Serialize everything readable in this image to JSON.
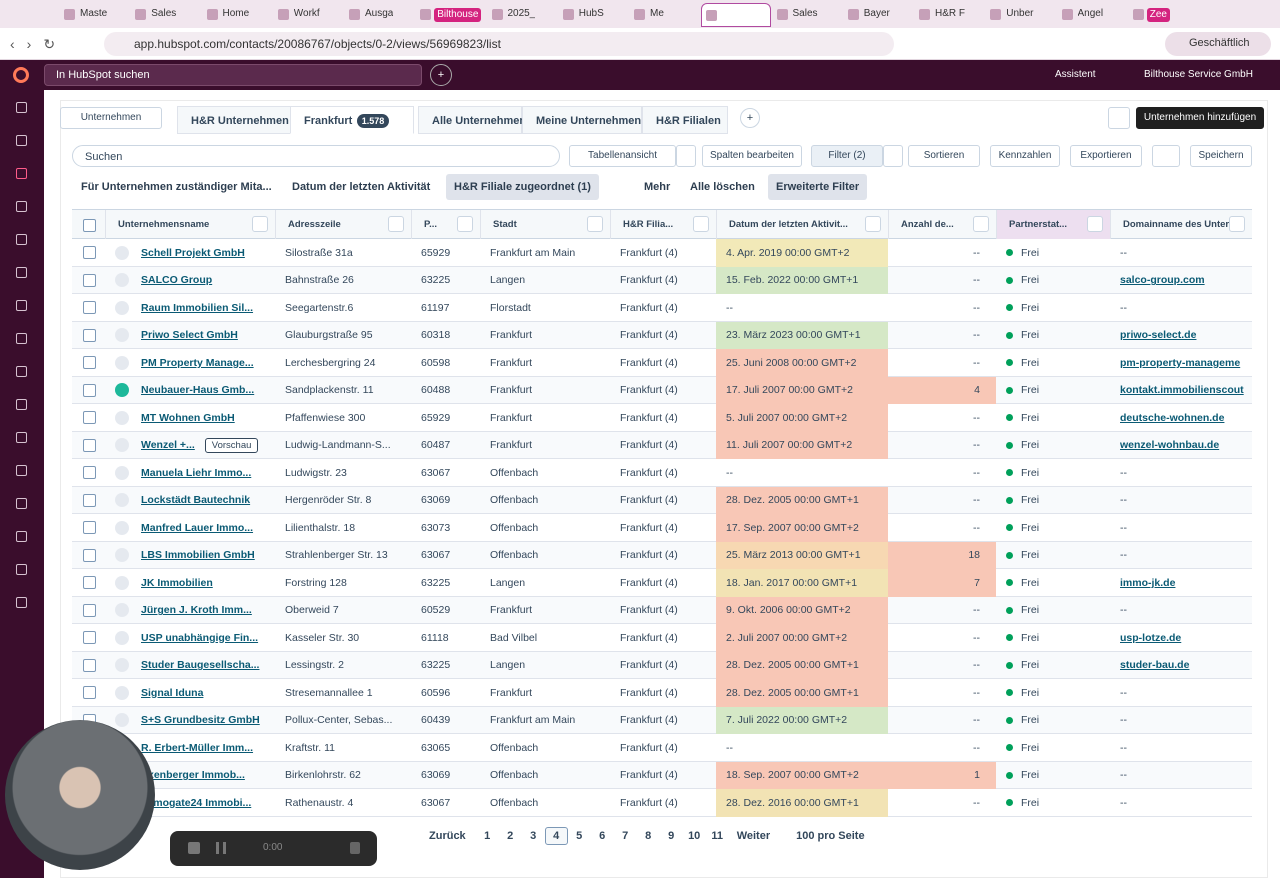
{
  "browser": {
    "tabs": [
      {
        "label": "Maste"
      },
      {
        "label": "Sales"
      },
      {
        "label": "Home"
      },
      {
        "label": "Workf"
      },
      {
        "label": "Ausga"
      },
      {
        "label": "Bilthouse",
        "pill": true
      },
      {
        "label": "2025_"
      },
      {
        "label": "HubS"
      },
      {
        "label": "Me"
      },
      {
        "label": "",
        "active": true
      },
      {
        "label": "Sales"
      },
      {
        "label": "Bayer"
      },
      {
        "label": "H&R F"
      },
      {
        "label": "Unber"
      },
      {
        "label": "Angel"
      },
      {
        "label": "Zee",
        "pill": true
      }
    ],
    "url": "app.hubspot.com/contacts/20086767/objects/0-2/views/56969823/list",
    "profile": "Geschäftlich"
  },
  "topbar": {
    "search": "In HubSpot suchen",
    "assistant": "Assistent",
    "account": "Bilthouse Service GmbH"
  },
  "views": {
    "object": "Unternehmen",
    "tabs": [
      {
        "label": "H&R Unternehmen"
      },
      {
        "label": "Frankfurt",
        "count": "1.578",
        "active": true
      },
      {
        "label": "Alle Unternehmen"
      },
      {
        "label": "Meine Unternehmen"
      },
      {
        "label": "H&R Filialen"
      }
    ],
    "add": "Unternehmen hinzufügen"
  },
  "toolbar": {
    "search": "Suchen",
    "view": "Tabellenansicht",
    "edit_columns": "Spalten bearbeiten",
    "filter": "Filter (2)",
    "sort": "Sortieren",
    "metrics": "Kennzahlen",
    "export": "Exportieren",
    "save": "Speichern"
  },
  "filters": {
    "owner": "Für Unternehmen zuständiger Mita...",
    "last_activity": "Datum der letzten Aktivität",
    "branch": "H&R Filiale zugeordnet (1)",
    "more": "Mehr",
    "clear": "Alle löschen",
    "advanced": "Erweiterte Filter"
  },
  "table": {
    "columns": [
      "Unternehmensname",
      "Adresszeile",
      "P...",
      "Stadt",
      "H&R Filia...",
      "Datum der letzten Aktivit...",
      "Anzahl de...",
      "Partnerstat...",
      "Domainname des Untern..."
    ],
    "rows": [
      {
        "name": "Schell Projekt GmbH",
        "address": "Silostraße 31a",
        "zip": "65929",
        "city": "Frankfurt am Main",
        "branch": "Frankfurt (4)",
        "date": "4. Apr. 2019 00:00 GMT+2",
        "date_color": "#f2e9b8",
        "count": "--",
        "status": "Frei",
        "domain": "--"
      },
      {
        "name": "SALCO Group",
        "address": "Bahnstraße 26",
        "zip": "63225",
        "city": "Langen",
        "branch": "Frankfurt (4)",
        "date": "15. Feb. 2022 00:00 GMT+1",
        "date_color": "#d5e8c6",
        "count": "--",
        "status": "Frei",
        "domain": "salco-group.com"
      },
      {
        "name": "Raum Immobilien Sil...",
        "address": "Seegartenstr.6",
        "zip": "61197",
        "city": "Florstadt",
        "branch": "Frankfurt (4)",
        "date": "--",
        "count": "--",
        "status": "Frei",
        "domain": "--"
      },
      {
        "name": "Priwo Select GmbH",
        "address": "Glauburgstraße 95",
        "zip": "60318",
        "city": "Frankfurt",
        "branch": "Frankfurt (4)",
        "date": "23. März 2023 00:00 GMT+1",
        "date_color": "#d5e8c6",
        "count": "--",
        "status": "Frei",
        "domain": "priwo-select.de"
      },
      {
        "name": "PM Property Manage...",
        "address": "Lerchesbergring 24",
        "zip": "60598",
        "city": "Frankfurt",
        "branch": "Frankfurt (4)",
        "date": "25. Juni 2008 00:00 GMT+2",
        "date_color": "#f8c7b6",
        "count": "--",
        "status": "Frei",
        "domain": "pm-property-manageme"
      },
      {
        "name": "Neubauer-Haus Gmb...",
        "address": "Sandplackenstr. 11",
        "zip": "60488",
        "city": "Frankfurt",
        "branch": "Frankfurt (4)",
        "date": "17. Juli 2007 00:00 GMT+2",
        "date_color": "#f8c7b6",
        "count": "4",
        "count_color": "#f8c7b6",
        "status": "Frei",
        "domain": "kontakt.immobilienscout"
      },
      {
        "name": "MT Wohnen GmbH",
        "address": "Pfaffenwiese 300",
        "zip": "65929",
        "city": "Frankfurt",
        "branch": "Frankfurt (4)",
        "date": "5. Juli 2007 00:00 GMT+2",
        "date_color": "#f8c7b6",
        "count": "--",
        "status": "Frei",
        "domain": "deutsche-wohnen.de"
      },
      {
        "name": "Wenzel +...",
        "preview": "Vorschau",
        "address": "Ludwig-Landmann-S...",
        "zip": "60487",
        "city": "Frankfurt",
        "branch": "Frankfurt (4)",
        "date": "11. Juli 2007 00:00 GMT+2",
        "date_color": "#f8c7b6",
        "count": "--",
        "status": "Frei",
        "domain": "wenzel-wohnbau.de"
      },
      {
        "name": "Manuela Liehr Immo...",
        "address": "Ludwigstr. 23",
        "zip": "63067",
        "city": "Offenbach",
        "branch": "Frankfurt (4)",
        "date": "--",
        "count": "--",
        "status": "Frei",
        "domain": "--"
      },
      {
        "name": "Lockstädt Bautechnik",
        "address": "Hergenröder Str. 8",
        "zip": "63069",
        "city": "Offenbach",
        "branch": "Frankfurt (4)",
        "date": "28. Dez. 2005 00:00 GMT+1",
        "date_color": "#f8c7b6",
        "count": "--",
        "status": "Frei",
        "domain": "--"
      },
      {
        "name": "Manfred Lauer Immo...",
        "address": "Lilienthalstr. 18",
        "zip": "63073",
        "city": "Offenbach",
        "branch": "Frankfurt (4)",
        "date": "17. Sep. 2007 00:00 GMT+2",
        "date_color": "#f8c7b6",
        "count": "--",
        "status": "Frei",
        "domain": "--"
      },
      {
        "name": "LBS Immobilien GmbH",
        "address": "Strahlenberger Str. 13",
        "zip": "63067",
        "city": "Offenbach",
        "branch": "Frankfurt (4)",
        "date": "25. März 2013 00:00 GMT+1",
        "date_color": "#f7d8b2",
        "count": "18",
        "count_color": "#f8c7b6",
        "status": "Frei",
        "domain": "--"
      },
      {
        "name": "JK Immobilien",
        "address": "Forstring 128",
        "zip": "63225",
        "city": "Langen",
        "branch": "Frankfurt (4)",
        "date": "18. Jan. 2017 00:00 GMT+1",
        "date_color": "#f2e3b4",
        "count": "7",
        "count_color": "#f8c7b6",
        "status": "Frei",
        "domain": "immo-jk.de"
      },
      {
        "name": "Jürgen J. Kroth Imm...",
        "address": "Oberweid 7",
        "zip": "60529",
        "city": "Frankfurt",
        "branch": "Frankfurt (4)",
        "date": "9. Okt. 2006 00:00 GMT+2",
        "date_color": "#f8c7b6",
        "count": "--",
        "status": "Frei",
        "domain": "--"
      },
      {
        "name": "USP unabhängige Fin...",
        "address": "Kasseler Str. 30",
        "zip": "61118",
        "city": "Bad Vilbel",
        "branch": "Frankfurt (4)",
        "date": "2. Juli 2007 00:00 GMT+2",
        "date_color": "#f8c7b6",
        "count": "--",
        "status": "Frei",
        "domain": "usp-lotze.de"
      },
      {
        "name": "Studer Baugesellscha...",
        "address": "Lessingstr. 2",
        "zip": "63225",
        "city": "Langen",
        "branch": "Frankfurt (4)",
        "date": "28. Dez. 2005 00:00 GMT+1",
        "date_color": "#f8c7b6",
        "count": "--",
        "status": "Frei",
        "domain": "studer-bau.de"
      },
      {
        "name": "Signal Iduna",
        "address": "Stresemannallee 1",
        "zip": "60596",
        "city": "Frankfurt",
        "branch": "Frankfurt (4)",
        "date": "28. Dez. 2005 00:00 GMT+1",
        "date_color": "#f8c7b6",
        "count": "--",
        "status": "Frei",
        "domain": "--"
      },
      {
        "name": "S+S Grundbesitz GmbH",
        "address": "Pollux-Center, Sebas...",
        "zip": "60439",
        "city": "Frankfurt am Main",
        "branch": "Frankfurt (4)",
        "date": "7. Juli 2022 00:00 GMT+2",
        "date_color": "#d5e8c6",
        "count": "--",
        "status": "Frei",
        "domain": "--"
      },
      {
        "name": "R. Erbert-Müller Imm...",
        "address": "Kraftstr. 11",
        "zip": "63065",
        "city": "Offenbach",
        "branch": "Frankfurt (4)",
        "date": "--",
        "count": "--",
        "status": "Frei",
        "domain": "--"
      },
      {
        "name": "Exenberger Immob...",
        "address": "Birkenlohrstr. 62",
        "zip": "63069",
        "city": "Offenbach",
        "branch": "Frankfurt (4)",
        "date": "18. Sep. 2007 00:00 GMT+2",
        "date_color": "#f8c7b6",
        "count": "1",
        "count_color": "#f8c7b6",
        "status": "Frei",
        "domain": "--"
      },
      {
        "name": "Immogate24 Immobi...",
        "address": "Rathenaustr. 4",
        "zip": "63067",
        "city": "Offenbach",
        "branch": "Frankfurt (4)",
        "date": "28. Dez. 2016 00:00 GMT+1",
        "date_color": "#f2e3b4",
        "count": "--",
        "status": "Frei",
        "domain": "--"
      }
    ]
  },
  "pagination": {
    "prev": "Zurück",
    "pages": [
      {
        "label": "1"
      },
      {
        "label": "2"
      },
      {
        "label": "3"
      },
      {
        "label": "4",
        "active": true
      },
      {
        "label": "5"
      },
      {
        "label": "6"
      },
      {
        "label": "7"
      },
      {
        "label": "8"
      },
      {
        "label": "9"
      },
      {
        "label": "10"
      },
      {
        "label": "11"
      }
    ],
    "next": "Weiter",
    "per_page": "100 pro Seite"
  },
  "recorder": {
    "time": "0:00"
  }
}
